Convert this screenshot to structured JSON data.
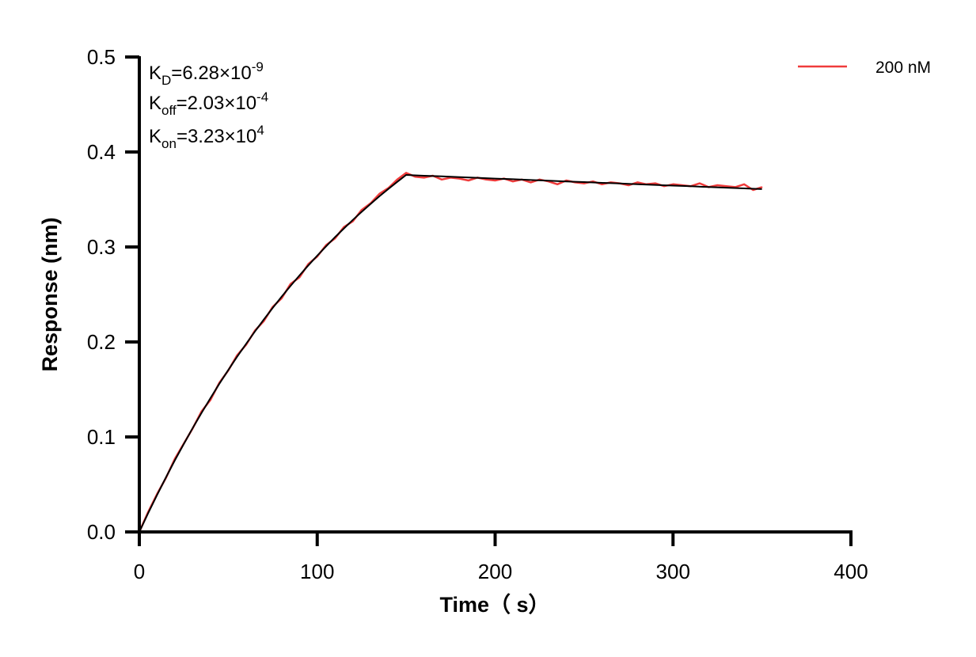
{
  "chart_data": {
    "type": "line",
    "xlabel": "Time（ s）",
    "ylabel": "Response (nm)",
    "xlim": [
      0,
      400
    ],
    "ylim": [
      0,
      0.5
    ],
    "xticks": [
      "0",
      "100",
      "200",
      "300",
      "400"
    ],
    "yticks": [
      "0.0",
      "0.1",
      "0.2",
      "0.3",
      "0.4",
      "0.5"
    ],
    "grid": false,
    "legend_position": "top-right",
    "annotations": {
      "kd": {
        "label": "K",
        "sub": "D",
        "value": "=6.28×10",
        "exp": "-9"
      },
      "koff": {
        "label": "K",
        "sub": "off",
        "value": "=2.03×10",
        "exp": "-4"
      },
      "kon": {
        "label": "K",
        "sub": "on",
        "value": "=3.23×10",
        "exp": "4"
      }
    },
    "series": [
      {
        "name": "200 nM",
        "color": "#ef3b3b",
        "x": [
          0,
          5,
          10,
          15,
          20,
          25,
          30,
          35,
          40,
          45,
          50,
          55,
          60,
          65,
          70,
          75,
          80,
          85,
          90,
          95,
          100,
          105,
          110,
          115,
          120,
          125,
          130,
          135,
          140,
          145,
          150,
          155,
          160,
          165,
          170,
          175,
          180,
          185,
          190,
          195,
          200,
          205,
          210,
          215,
          220,
          225,
          230,
          235,
          240,
          245,
          250,
          255,
          260,
          265,
          270,
          275,
          280,
          285,
          290,
          295,
          300,
          305,
          310,
          315,
          320,
          325,
          330,
          335,
          340,
          345,
          350
        ],
        "y": [
          0.0,
          0.021,
          0.04,
          0.057,
          0.077,
          0.093,
          0.109,
          0.127,
          0.139,
          0.157,
          0.17,
          0.186,
          0.197,
          0.212,
          0.222,
          0.237,
          0.246,
          0.261,
          0.268,
          0.282,
          0.29,
          0.302,
          0.309,
          0.321,
          0.327,
          0.339,
          0.346,
          0.356,
          0.362,
          0.371,
          0.378,
          0.374,
          0.373,
          0.375,
          0.371,
          0.373,
          0.372,
          0.37,
          0.373,
          0.371,
          0.37,
          0.372,
          0.369,
          0.371,
          0.368,
          0.371,
          0.369,
          0.366,
          0.37,
          0.368,
          0.367,
          0.369,
          0.366,
          0.368,
          0.367,
          0.365,
          0.368,
          0.366,
          0.367,
          0.364,
          0.366,
          0.365,
          0.364,
          0.367,
          0.363,
          0.365,
          0.364,
          0.363,
          0.366,
          0.36,
          0.363
        ]
      }
    ],
    "fit": {
      "color": "#000000",
      "x": [
        0,
        5,
        10,
        15,
        20,
        25,
        30,
        35,
        40,
        45,
        50,
        55,
        60,
        65,
        70,
        75,
        80,
        85,
        90,
        95,
        100,
        105,
        110,
        115,
        120,
        125,
        130,
        135,
        140,
        145,
        150,
        160,
        170,
        180,
        190,
        200,
        210,
        220,
        230,
        240,
        250,
        260,
        270,
        280,
        290,
        300,
        310,
        320,
        330,
        340,
        350
      ],
      "y": [
        0,
        0.0198,
        0.039,
        0.0575,
        0.0754,
        0.0926,
        0.1093,
        0.1254,
        0.1409,
        0.156,
        0.1705,
        0.1845,
        0.198,
        0.2111,
        0.2237,
        0.2359,
        0.2477,
        0.259,
        0.27,
        0.2806,
        0.2909,
        0.3007,
        0.3103,
        0.3195,
        0.3285,
        0.337,
        0.3453,
        0.3534,
        0.3611,
        0.3686,
        0.3758,
        0.375,
        0.3743,
        0.3735,
        0.3728,
        0.372,
        0.3713,
        0.3705,
        0.3698,
        0.369,
        0.3683,
        0.3675,
        0.3668,
        0.3661,
        0.3653,
        0.3646,
        0.3639,
        0.3631,
        0.3624,
        0.3617,
        0.3609
      ]
    }
  }
}
